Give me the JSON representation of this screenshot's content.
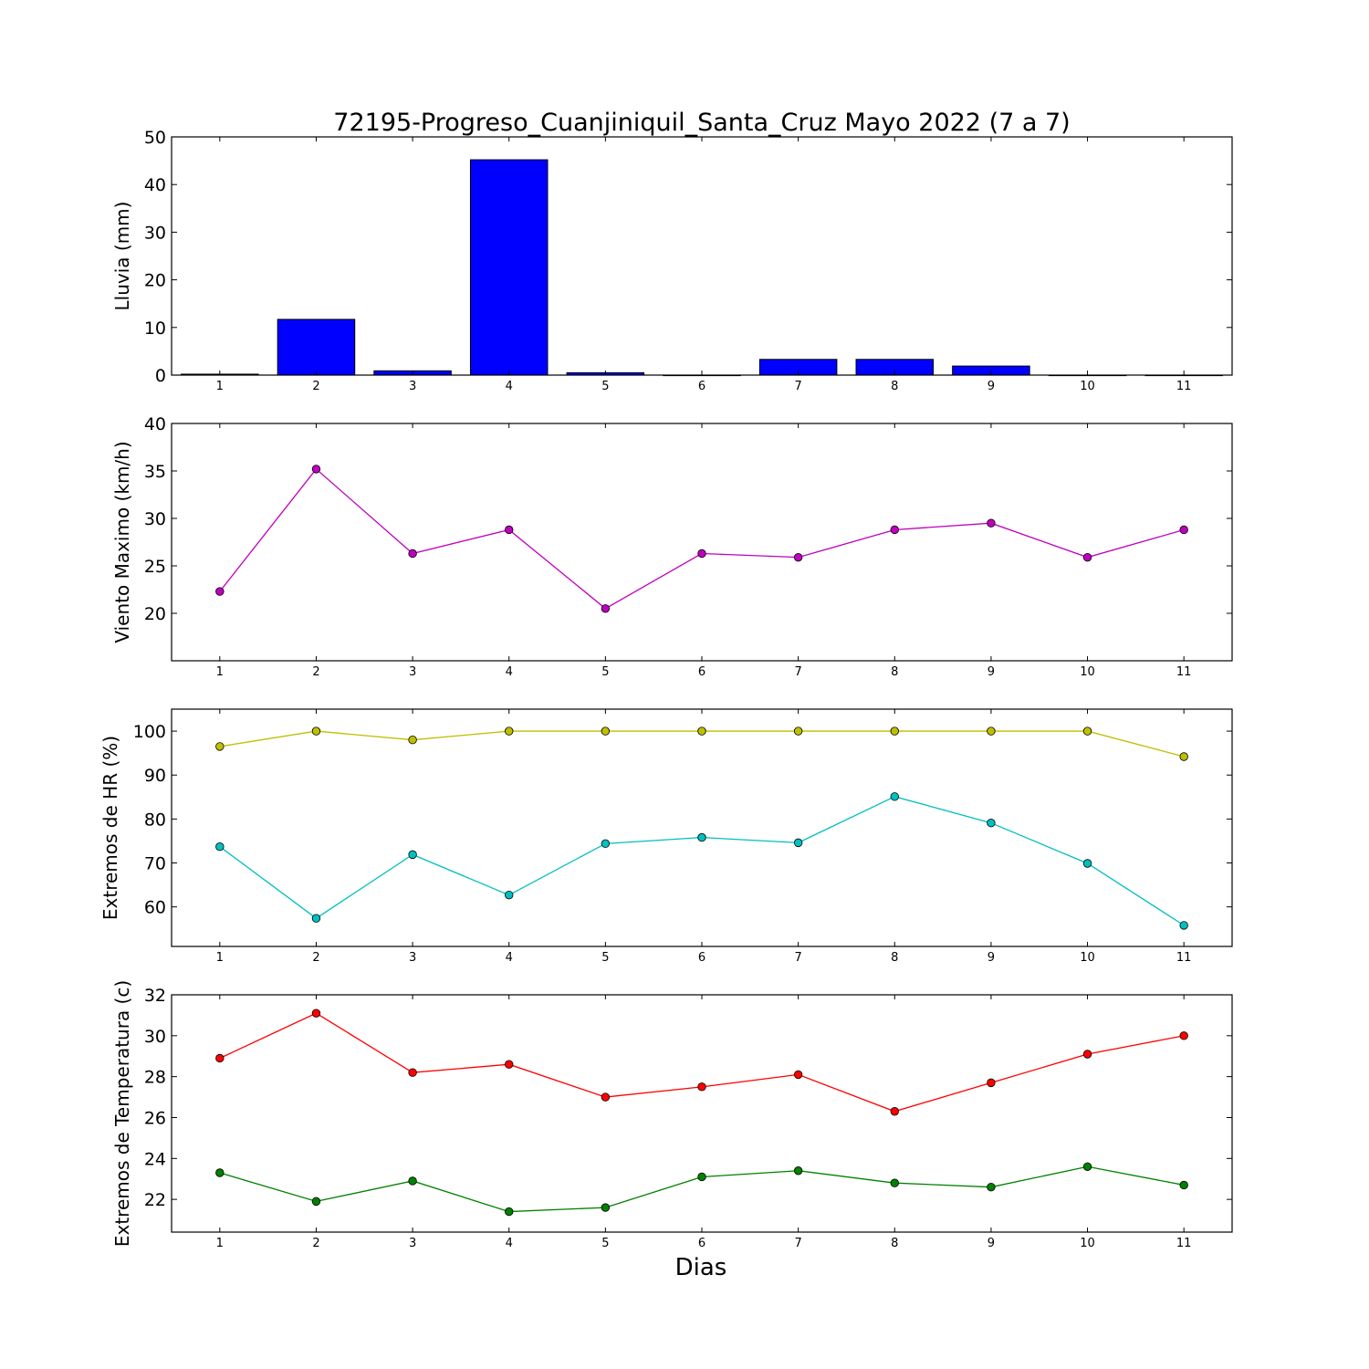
{
  "figure": {
    "title": "72195-Progreso_Cuanjiniquil_Santa_Cruz Mayo 2022  (7 a 7)",
    "xlabel": "Dias"
  },
  "chart_data": [
    {
      "type": "bar",
      "ylabel": "Lluvia (mm)",
      "categories": [
        "1",
        "2",
        "3",
        "4",
        "5",
        "6",
        "7",
        "8",
        "9",
        "10",
        "11"
      ],
      "xlim": [
        0.5,
        11.5
      ],
      "ylim": [
        0,
        50
      ],
      "yticks": [
        0,
        10,
        20,
        30,
        40,
        50
      ],
      "series": [
        {
          "values": [
            0.2,
            11.7,
            0.9,
            45.2,
            0.5,
            0,
            3.3,
            3.3,
            1.9,
            0,
            0
          ],
          "color": "#0000ff"
        }
      ],
      "grid": false
    },
    {
      "type": "line",
      "ylabel": "Viento Maximo (km/h)",
      "x": [
        1,
        2,
        3,
        4,
        5,
        6,
        7,
        8,
        9,
        10,
        11
      ],
      "xlim": [
        0.5,
        11.5
      ],
      "ylim": [
        15,
        40
      ],
      "yticks": [
        20,
        25,
        30,
        35,
        40
      ],
      "series": [
        {
          "values": [
            22.3,
            35.2,
            26.3,
            28.8,
            20.5,
            26.3,
            25.9,
            28.8,
            29.5,
            25.9,
            28.8
          ],
          "color": "#bf00bf"
        }
      ],
      "grid": false
    },
    {
      "type": "line",
      "ylabel": "Extremos de HR (%)",
      "x": [
        1,
        2,
        3,
        4,
        5,
        6,
        7,
        8,
        9,
        10,
        11
      ],
      "xlim": [
        0.5,
        11.5
      ],
      "ylim": [
        51,
        105
      ],
      "yticks": [
        60,
        70,
        80,
        90,
        100
      ],
      "series": [
        {
          "values": [
            96.5,
            100,
            98,
            100,
            100,
            100,
            100,
            100,
            100,
            100,
            94.2
          ],
          "color": "#bfbf00"
        },
        {
          "values": [
            73.7,
            57.4,
            71.9,
            62.7,
            74.4,
            75.8,
            74.6,
            85.1,
            79.1,
            69.9,
            55.8
          ],
          "color": "#00bfbf"
        }
      ],
      "grid": false
    },
    {
      "type": "line",
      "ylabel": "Extremos de Temperatura (c)",
      "x": [
        1,
        2,
        3,
        4,
        5,
        6,
        7,
        8,
        9,
        10,
        11
      ],
      "xlim": [
        0.5,
        11.5
      ],
      "ylim": [
        20.4,
        32
      ],
      "yticks": [
        22,
        24,
        26,
        28,
        30,
        32
      ],
      "series": [
        {
          "values": [
            28.9,
            31.1,
            28.2,
            28.6,
            27.0,
            27.5,
            28.1,
            26.3,
            27.7,
            29.1,
            30.0
          ],
          "color": "#ff0000"
        },
        {
          "values": [
            23.3,
            21.9,
            22.9,
            21.4,
            21.6,
            23.1,
            23.4,
            22.8,
            22.6,
            23.6,
            22.7
          ],
          "color": "#008000"
        }
      ],
      "grid": false
    }
  ]
}
